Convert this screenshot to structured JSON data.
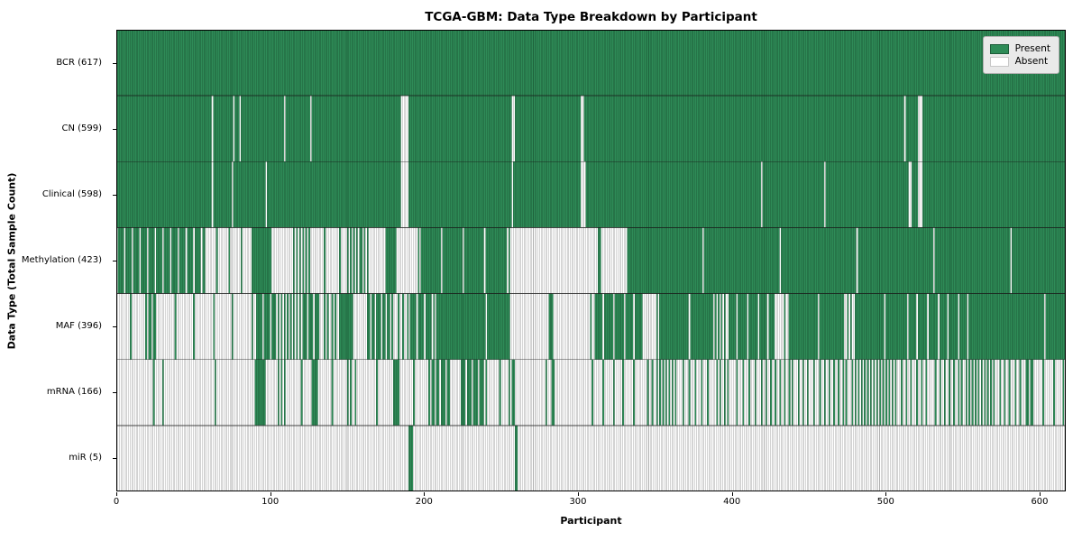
{
  "chart": {
    "title": "TCGA-GBM: Data Type Breakdown by Participant",
    "xlabel": "Participant",
    "ylabel": "Data Type (Total Sample Count)",
    "legend": {
      "present_label": "Present",
      "absent_label": "Absent"
    }
  },
  "chart_data": {
    "type": "heatmap",
    "title": "TCGA-GBM: Data Type Breakdown by Participant",
    "xlabel": "Participant",
    "ylabel": "Data Type (Total Sample Count)",
    "x_ticks": [
      0,
      100,
      200,
      300,
      400,
      500,
      600
    ],
    "n_participants": 617,
    "legend_position": "upper right",
    "colors": {
      "present": "#2e8b57",
      "present_edge": "#1d5c39",
      "absent": "#ffffff",
      "absent_edge": "#a6a6a6",
      "row_separator": "#1a1a1a",
      "border": "#000000"
    },
    "segments_format": "[start_participant, end_participant, fraction_present] estimated from pixels",
    "rows": [
      {
        "label": "BCR (617)",
        "name": "BCR",
        "count": 617,
        "segments": [
          [
            0,
            617,
            1
          ]
        ]
      },
      {
        "label": "CN (599)",
        "name": "CN",
        "count": 599,
        "segments": [
          [
            0,
            62,
            1
          ],
          [
            62,
            63,
            0
          ],
          [
            63,
            76,
            1
          ],
          [
            76,
            77,
            0
          ],
          [
            77,
            80,
            1
          ],
          [
            80,
            81,
            0
          ],
          [
            81,
            109,
            1
          ],
          [
            109,
            110,
            0
          ],
          [
            110,
            126,
            1
          ],
          [
            126,
            127,
            0
          ],
          [
            127,
            185,
            1
          ],
          [
            185,
            190,
            0
          ],
          [
            190,
            257,
            1
          ],
          [
            257,
            259,
            0
          ],
          [
            259,
            302,
            1
          ],
          [
            302,
            304,
            0
          ],
          [
            304,
            512,
            1
          ],
          [
            512,
            513,
            0
          ],
          [
            513,
            521,
            1
          ],
          [
            521,
            524,
            0
          ],
          [
            524,
            617,
            1
          ]
        ]
      },
      {
        "label": "Clinical (598)",
        "name": "Clinical",
        "count": 598,
        "segments": [
          [
            0,
            62,
            1
          ],
          [
            62,
            63,
            0
          ],
          [
            63,
            75,
            1
          ],
          [
            75,
            76,
            0
          ],
          [
            76,
            97,
            1
          ],
          [
            97,
            98,
            0
          ],
          [
            98,
            185,
            1
          ],
          [
            185,
            190,
            0
          ],
          [
            190,
            257,
            1
          ],
          [
            257,
            258,
            0
          ],
          [
            258,
            302,
            1
          ],
          [
            302,
            305,
            0
          ],
          [
            305,
            419,
            1
          ],
          [
            419,
            420,
            0
          ],
          [
            420,
            460,
            1
          ],
          [
            460,
            461,
            0
          ],
          [
            461,
            515,
            1
          ],
          [
            515,
            517,
            0
          ],
          [
            517,
            521,
            1
          ],
          [
            521,
            524,
            0
          ],
          [
            524,
            617,
            1
          ]
        ]
      },
      {
        "label": "Methylation (423)",
        "name": "Methylation",
        "count": 423,
        "segments": [
          [
            0,
            58,
            0.8
          ],
          [
            58,
            89,
            0.13
          ],
          [
            89,
            101,
            1
          ],
          [
            101,
            114,
            0
          ],
          [
            114,
            126,
            0.5
          ],
          [
            126,
            149,
            0.1
          ],
          [
            149,
            164,
            0.55
          ],
          [
            164,
            175,
            0
          ],
          [
            175,
            182,
            1
          ],
          [
            182,
            197,
            0.07
          ],
          [
            197,
            256,
            0.93
          ],
          [
            256,
            313,
            0
          ],
          [
            313,
            315,
            1
          ],
          [
            315,
            331,
            0
          ],
          [
            331,
            617,
            0.98
          ]
        ]
      },
      {
        "label": "MAF (396)",
        "name": "MAF",
        "count": 396,
        "segments": [
          [
            0,
            20,
            0.1
          ],
          [
            20,
            26,
            0.7
          ],
          [
            26,
            90,
            0.08
          ],
          [
            90,
            104,
            0.8
          ],
          [
            104,
            120,
            0.5
          ],
          [
            120,
            133,
            0.75
          ],
          [
            133,
            144,
            0.4
          ],
          [
            144,
            154,
            0.9
          ],
          [
            154,
            162,
            0.1
          ],
          [
            162,
            180,
            0.7
          ],
          [
            180,
            190,
            0.3
          ],
          [
            190,
            207,
            0.8
          ],
          [
            207,
            256,
            0.97
          ],
          [
            256,
            281,
            0
          ],
          [
            281,
            284,
            1
          ],
          [
            284,
            310,
            0.04
          ],
          [
            310,
            342,
            0.85
          ],
          [
            342,
            352,
            0.1
          ],
          [
            352,
            388,
            0.95
          ],
          [
            388,
            397,
            0.5
          ],
          [
            397,
            428,
            0.85
          ],
          [
            428,
            436,
            0.15
          ],
          [
            436,
            473,
            0.95
          ],
          [
            473,
            479,
            0.4
          ],
          [
            479,
            514,
            0.95
          ],
          [
            514,
            553,
            0.85
          ],
          [
            553,
            617,
            0.98
          ]
        ]
      },
      {
        "label": "mRNA (166)",
        "name": "mRNA",
        "count": 166,
        "segments": [
          [
            0,
            19,
            0
          ],
          [
            19,
            31,
            0.17
          ],
          [
            31,
            89,
            0.03
          ],
          [
            89,
            97,
            0.9
          ],
          [
            97,
            104,
            0
          ],
          [
            104,
            111,
            0.5
          ],
          [
            111,
            126,
            0.1
          ],
          [
            126,
            131,
            0.8
          ],
          [
            131,
            148,
            0.1
          ],
          [
            148,
            157,
            0.4
          ],
          [
            157,
            179,
            0.08
          ],
          [
            179,
            184,
            0.8
          ],
          [
            184,
            204,
            0.1
          ],
          [
            204,
            218,
            0.7
          ],
          [
            218,
            223,
            0
          ],
          [
            223,
            241,
            0.75
          ],
          [
            241,
            254,
            0.12
          ],
          [
            254,
            260,
            0.6
          ],
          [
            260,
            282,
            0.05
          ],
          [
            282,
            285,
            0.7
          ],
          [
            285,
            310,
            0.04
          ],
          [
            310,
            342,
            0.15
          ],
          [
            342,
            352,
            0.3
          ],
          [
            352,
            365,
            0.5
          ],
          [
            365,
            388,
            0.25
          ],
          [
            388,
            400,
            0.4
          ],
          [
            400,
            420,
            0.25
          ],
          [
            420,
            440,
            0.35
          ],
          [
            440,
            455,
            0.3
          ],
          [
            455,
            477,
            0.35
          ],
          [
            477,
            507,
            0.5
          ],
          [
            507,
            530,
            0.3
          ],
          [
            530,
            553,
            0.35
          ],
          [
            553,
            571,
            0.5
          ],
          [
            571,
            590,
            0.3
          ],
          [
            590,
            596,
            0.7
          ],
          [
            596,
            617,
            0.15
          ]
        ]
      },
      {
        "label": "miR (5)",
        "name": "miR",
        "count": 5,
        "segments": [
          [
            0,
            190,
            0
          ],
          [
            190,
            193,
            1
          ],
          [
            193,
            259,
            0
          ],
          [
            259,
            261,
            1
          ],
          [
            261,
            617,
            0
          ]
        ]
      }
    ]
  }
}
